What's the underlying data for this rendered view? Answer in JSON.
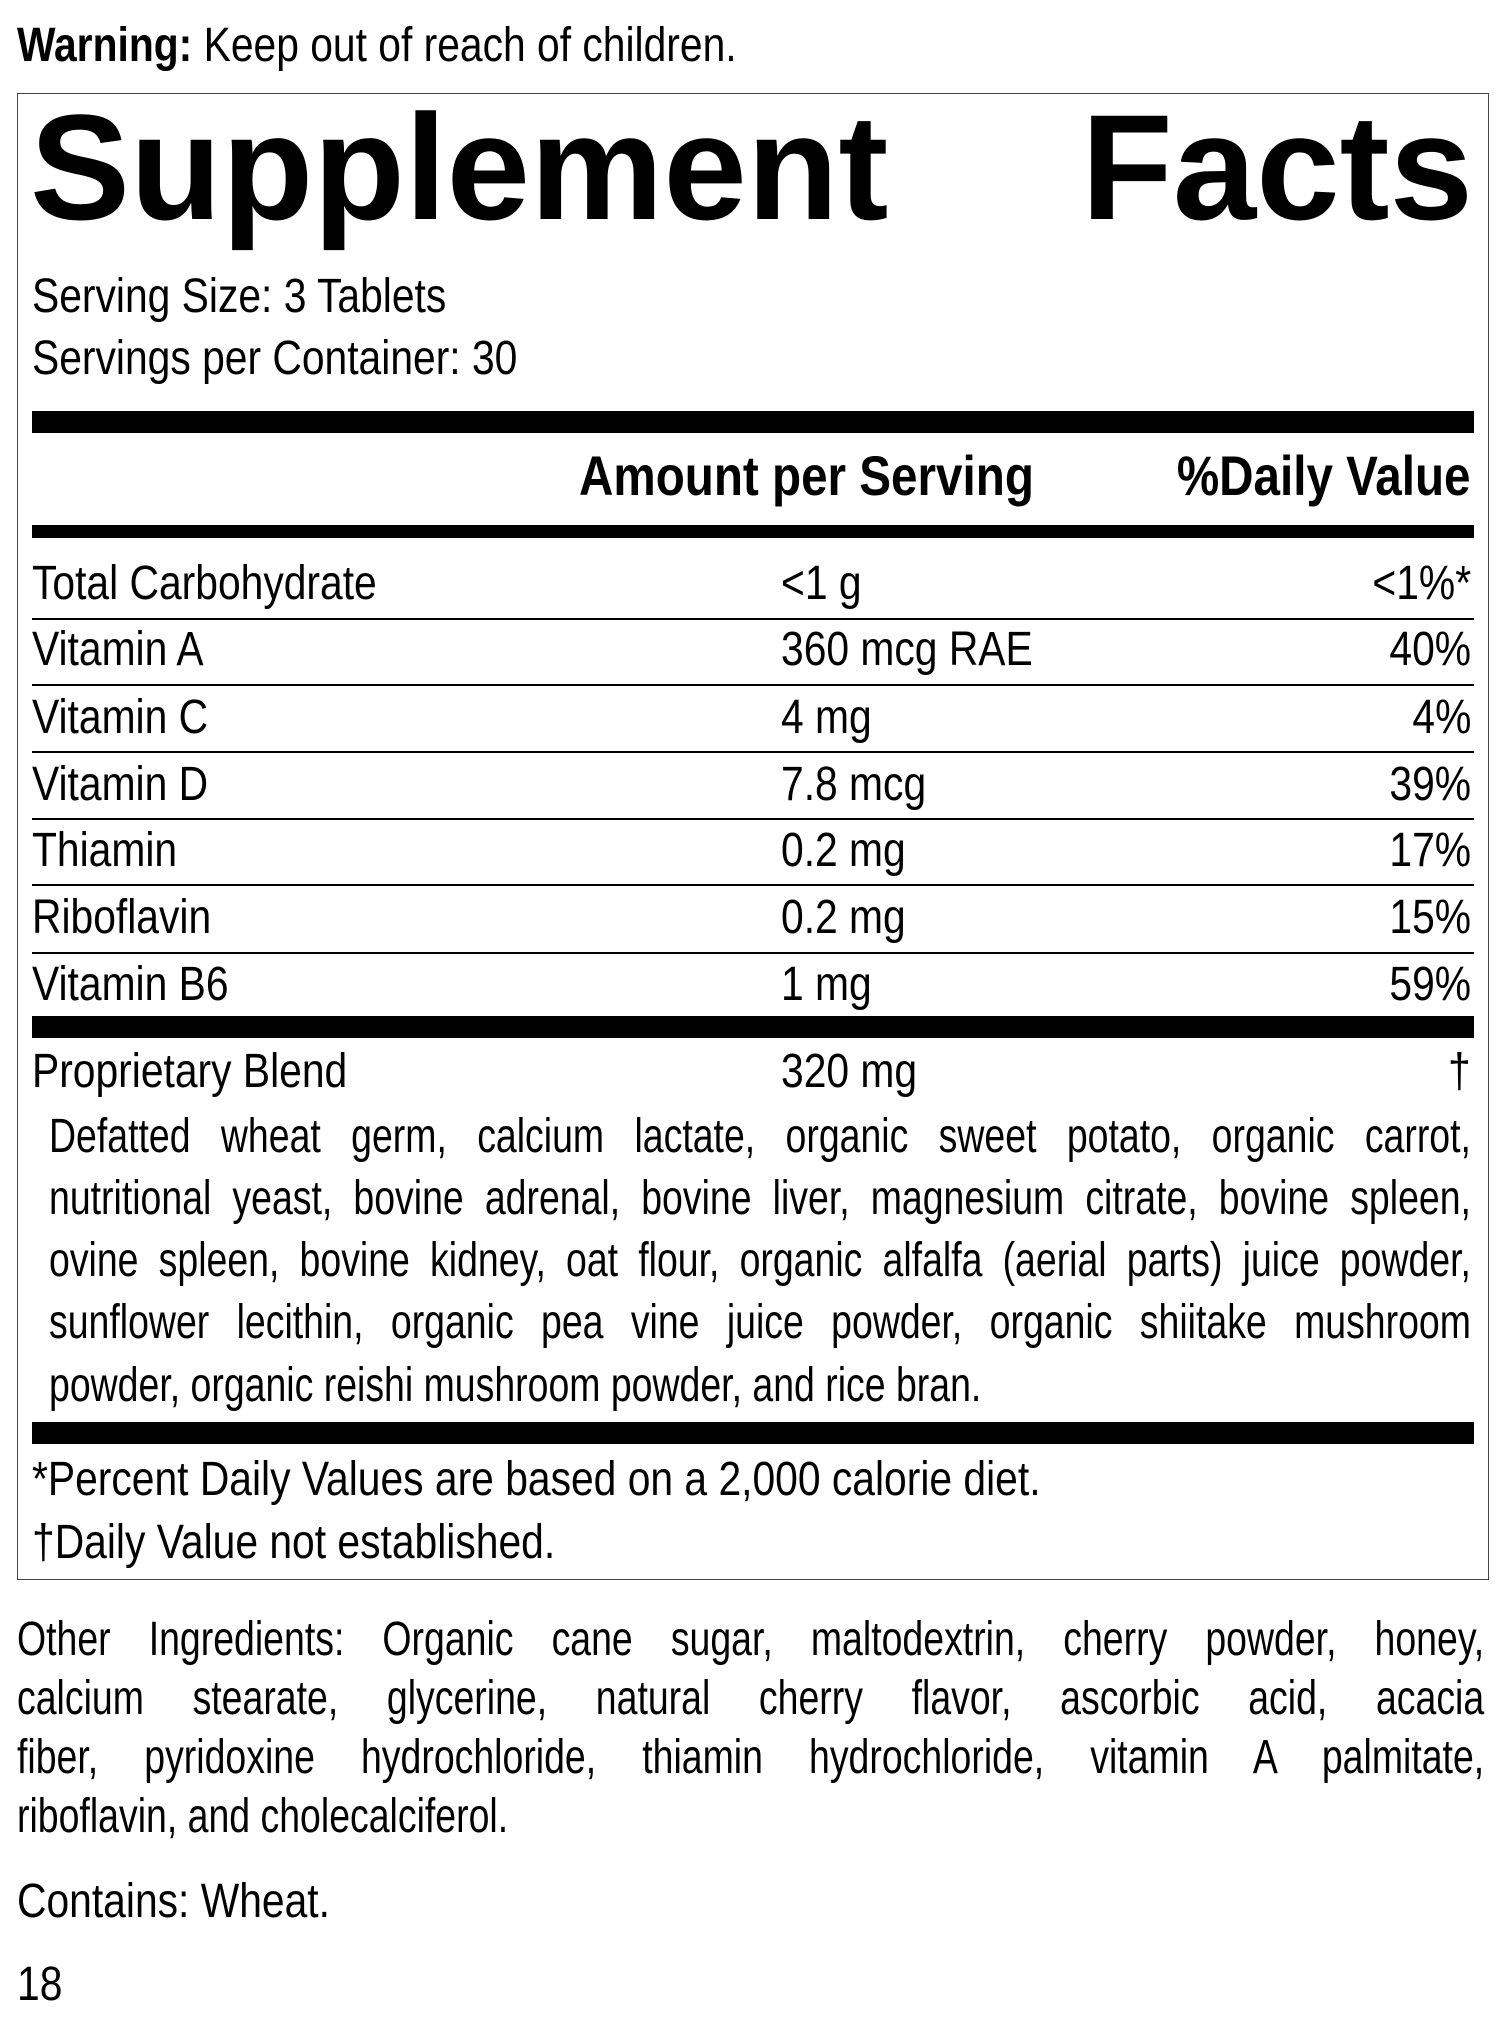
{
  "warning": {
    "label": "Warning:",
    "text": "Keep out of reach of children."
  },
  "title": {
    "word1": "Supplement",
    "word2": "Facts"
  },
  "serving_size": "Serving Size: 3 Tablets",
  "servings_per_container": "Servings per Container: 30",
  "header": {
    "amount": "Amount per Serving",
    "dv": "%Daily Value"
  },
  "rows": [
    {
      "name": "Total Carbohydrate",
      "amount": "<1 g",
      "dv": "<1%*"
    },
    {
      "name": "Vitamin A",
      "amount": "360 mcg RAE",
      "dv": "40%"
    },
    {
      "name": "Vitamin C",
      "amount": "4 mg",
      "dv": "4%"
    },
    {
      "name": "Vitamin D",
      "amount": "7.8 mcg",
      "dv": "39%"
    },
    {
      "name": "Thiamin",
      "amount": "0.2 mg",
      "dv": "17%"
    },
    {
      "name": "Riboflavin",
      "amount": "0.2 mg",
      "dv": "15%"
    },
    {
      "name": "Vitamin B6",
      "amount": "1 mg",
      "dv": "59%"
    }
  ],
  "blend": {
    "name": "Proprietary Blend",
    "amount": "320 mg",
    "dv": "†",
    "ingredients_lines": [
      "Defatted wheat germ, calcium lactate, organic sweet potato, organic carrot,",
      "nutritional yeast, bovine adrenal, bovine liver, magnesium citrate, bovine spleen,",
      "ovine spleen, bovine kidney, oat flour, organic alfalfa (aerial parts) juice powder,",
      "sunflower lecithin, organic pea vine juice powder, organic shiitake mushroom",
      "powder, organic reishi mushroom powder, and rice bran."
    ]
  },
  "footnotes": [
    "*Percent Daily Values are based on a 2,000 calorie diet.",
    "†Daily Value not established."
  ],
  "other_ingredients_lines": [
    "Other Ingredients: Organic cane sugar, maltodextrin, cherry powder, honey,",
    "calcium stearate, glycerine, natural cherry flavor, ascorbic acid, acacia",
    "fiber, pyridoxine hydrochloride, thiamin hydrochloride, vitamin A palmitate,",
    "riboflavin, and cholecalciferol."
  ],
  "contains": "Contains: Wheat.",
  "page_number": "18"
}
